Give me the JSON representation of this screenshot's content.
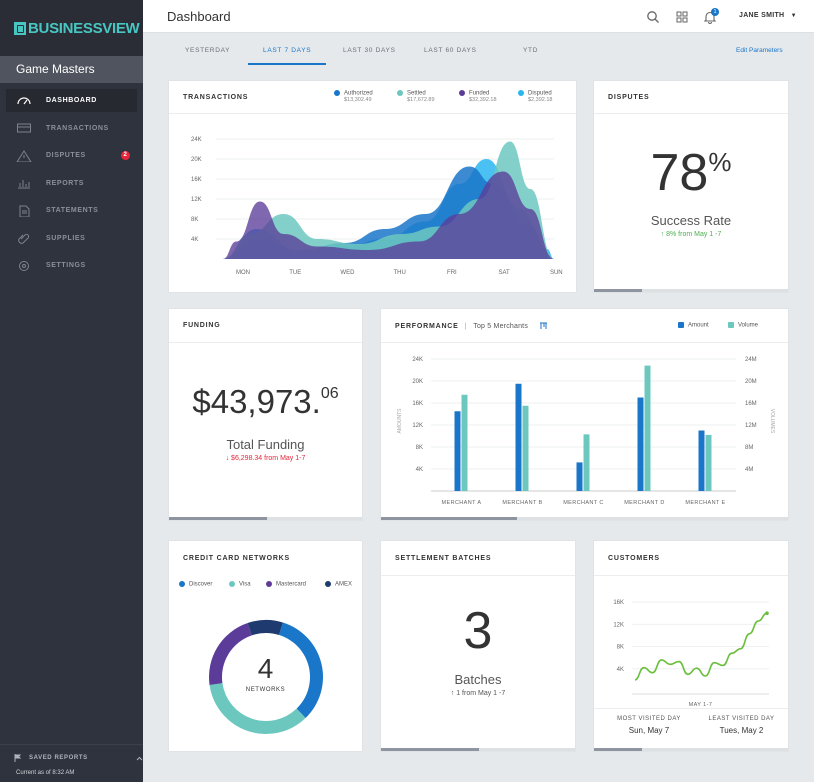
{
  "sidebar": {
    "logo": "BUSINESSVIEW",
    "org": "Game Masters",
    "items": [
      {
        "label": "DASHBOARD",
        "icon": "gauge-icon",
        "active": true
      },
      {
        "label": "TRANSACTIONS",
        "icon": "credit-card-icon"
      },
      {
        "label": "DISPUTES",
        "icon": "warning-icon",
        "badge": "2"
      },
      {
        "label": "REPORTS",
        "icon": "bar-chart-icon"
      },
      {
        "label": "STATEMENTS",
        "icon": "document-icon"
      },
      {
        "label": "SUPPLIES",
        "icon": "paperclip-icon"
      },
      {
        "label": "SETTINGS",
        "icon": "gear-icon"
      }
    ],
    "saved_reports": "SAVED REPORTS",
    "current_as_of": "Current as of 8:32 AM"
  },
  "header": {
    "title": "Dashboard",
    "notification_count": "1",
    "user": "JANE SMITH"
  },
  "tabs": {
    "items": [
      "YESTERDAY",
      "LAST 7 DAYS",
      "LAST 30 DAYS",
      "LAST 60 DAYS",
      "YTD"
    ],
    "active": "LAST 7 DAYS",
    "edit": "Edit Parameters"
  },
  "transactions": {
    "title": "TRANSACTIONS",
    "legend": [
      {
        "name": "Authorized",
        "value": "$13,302.49",
        "color": "#1a76c9"
      },
      {
        "name": "Settled",
        "value": "$17,672.89",
        "color": "#6cc8bf"
      },
      {
        "name": "Funded",
        "value": "$32,392.18",
        "color": "#5b3d99"
      },
      {
        "name": "Disputed",
        "value": "$2,392.18",
        "color": "#2ab6f0"
      }
    ],
    "chart_data": {
      "type": "area",
      "categories": [
        "MON",
        "TUE",
        "WED",
        "THU",
        "FRI",
        "SAT",
        "SUN"
      ],
      "yticks": [
        "24K",
        "20K",
        "16K",
        "12K",
        "8K",
        "4K"
      ],
      "ylim": [
        0,
        26000
      ]
    }
  },
  "disputes": {
    "title": "DISPUTES",
    "value": "78",
    "unit": "%",
    "label": "Success Rate",
    "trend": "↑ 8% from May 1 -7",
    "trend_color": "#4caf50"
  },
  "funding": {
    "title": "FUNDING",
    "dollars": "$43,973.",
    "cents": "06",
    "label": "Total Funding",
    "trend": "↓ $6,298.34 from May 1-7",
    "trend_color": "#e5263b"
  },
  "performance": {
    "title": "PERFORMANCE",
    "subtitle": "Top 5 Merchants",
    "legend": [
      {
        "name": "Amount",
        "color": "#1a76c9"
      },
      {
        "name": "Volume",
        "color": "#6cc8bf"
      }
    ],
    "chart_data": {
      "type": "bar",
      "categories": [
        "MERCHANT A",
        "MERCHANT B",
        "MERCHANT C",
        "MERCHANT D",
        "MERCHANT E"
      ],
      "series": [
        {
          "name": "Amount",
          "values": [
            14500,
            19500,
            5200,
            17000,
            11000
          ]
        },
        {
          "name": "Volume",
          "values": [
            17500,
            15500,
            10300,
            22800,
            10200
          ]
        }
      ],
      "yticks_left": [
        "24K",
        "20K",
        "16K",
        "12K",
        "8K",
        "4K"
      ],
      "yticks_right": [
        "24M",
        "20M",
        "16M",
        "12M",
        "8M",
        "4M"
      ],
      "ylabel_left": "AMOUNTS",
      "ylabel_right": "VOLUMES",
      "ylim": [
        0,
        24000
      ]
    }
  },
  "networks": {
    "title": "CREDIT CARD NETWORKS",
    "legend": [
      {
        "name": "Discover",
        "color": "#1a76c9"
      },
      {
        "name": "Visa",
        "color": "#6cc8bf"
      },
      {
        "name": "Mastercard",
        "color": "#5b3d99"
      },
      {
        "name": "AMEX",
        "color": "#1f3a6e"
      }
    ],
    "count": "4",
    "count_label": "NETWORKS",
    "chart_data": {
      "type": "pie",
      "labels": [
        "Discover",
        "Visa",
        "Mastercard",
        "AMEX"
      ],
      "values": [
        33,
        35,
        22,
        10
      ]
    }
  },
  "settlement": {
    "title": "SETTLEMENT BATCHES",
    "value": "3",
    "label": "Batches",
    "trend": "↑ 1 from May 1 -7"
  },
  "customers": {
    "title": "CUSTOMERS",
    "chart_data": {
      "type": "line",
      "xlabel": "MAY 1-7",
      "yticks": [
        "16K",
        "12K",
        "8K",
        "4K"
      ],
      "ylim": [
        0,
        18000
      ],
      "values": [
        2000,
        4200,
        3300,
        5600,
        4800,
        5300,
        3000,
        4100,
        2700,
        5100,
        4600,
        6800,
        7600,
        10300,
        12600,
        14000
      ]
    },
    "most_label": "MOST VISITED DAY",
    "most_value": "Sun, May 7",
    "least_label": "LEAST VISITED DAY",
    "least_value": "Tues, May 2"
  }
}
